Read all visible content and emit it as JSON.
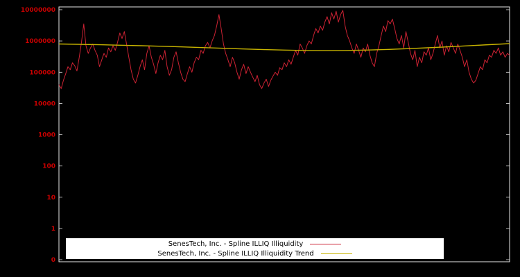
{
  "chart_data": {
    "type": "line",
    "title": "",
    "xlabel": "",
    "ylabel": "",
    "y_scale": "log",
    "grid": false,
    "legend_position": "bottom-center",
    "background_color": "#000000",
    "frame_color": "#e8e8e8",
    "tick_label_color": "#cc0000",
    "y_ticks": [
      {
        "label": "10000000",
        "value": 10000000
      },
      {
        "label": "1000000",
        "value": 1000000
      },
      {
        "label": "100000",
        "value": 100000
      },
      {
        "label": "10000",
        "value": 10000
      },
      {
        "label": "1000",
        "value": 1000
      },
      {
        "label": "100",
        "value": 100
      },
      {
        "label": "10",
        "value": 10
      },
      {
        "label": "1",
        "value": 1
      },
      {
        "label": "0",
        "value": null
      }
    ],
    "ylim_log10": [
      0,
      7
    ],
    "series": [
      {
        "name": "SenesTech, Inc. - Spline ILLIQ Illiquidity",
        "color": "#cc2233",
        "width": 1,
        "values": [
          40000,
          30000,
          55000,
          90000,
          150000,
          120000,
          200000,
          160000,
          110000,
          300000,
          900000,
          3500000,
          700000,
          400000,
          600000,
          800000,
          500000,
          350000,
          150000,
          250000,
          400000,
          300000,
          600000,
          450000,
          700000,
          500000,
          900000,
          1800000,
          1200000,
          2000000,
          800000,
          300000,
          120000,
          60000,
          45000,
          80000,
          150000,
          250000,
          120000,
          400000,
          700000,
          300000,
          180000,
          90000,
          200000,
          350000,
          250000,
          500000,
          150000,
          80000,
          120000,
          300000,
          450000,
          200000,
          100000,
          60000,
          50000,
          90000,
          150000,
          100000,
          200000,
          300000,
          250000,
          500000,
          400000,
          700000,
          900000,
          600000,
          1000000,
          1500000,
          3000000,
          7000000,
          2500000,
          800000,
          400000,
          250000,
          150000,
          300000,
          200000,
          100000,
          60000,
          120000,
          180000,
          90000,
          150000,
          100000,
          70000,
          50000,
          80000,
          40000,
          30000,
          45000,
          60000,
          35000,
          55000,
          75000,
          100000,
          80000,
          140000,
          120000,
          200000,
          150000,
          250000,
          180000,
          300000,
          500000,
          350000,
          800000,
          600000,
          400000,
          700000,
          1000000,
          800000,
          1500000,
          2500000,
          1800000,
          3000000,
          2200000,
          4000000,
          6000000,
          3500000,
          8000000,
          5000000,
          9000000,
          4000000,
          7000000,
          9500000,
          3000000,
          1500000,
          1000000,
          600000,
          400000,
          800000,
          500000,
          300000,
          600000,
          450000,
          800000,
          350000,
          200000,
          150000,
          400000,
          700000,
          1500000,
          3000000,
          2000000,
          4500000,
          3500000,
          5000000,
          2500000,
          1200000,
          800000,
          1500000,
          600000,
          2000000,
          900000,
          400000,
          250000,
          500000,
          150000,
          300000,
          200000,
          450000,
          350000,
          600000,
          250000,
          400000,
          800000,
          1500000,
          600000,
          1000000,
          350000,
          700000,
          450000,
          900000,
          600000,
          400000,
          800000,
          500000,
          300000,
          150000,
          250000,
          100000,
          60000,
          45000,
          55000,
          90000,
          150000,
          120000,
          250000,
          200000,
          350000,
          300000,
          500000,
          400000,
          600000,
          350000,
          450000,
          300000,
          400000,
          350000
        ]
      },
      {
        "name": "SenesTech, Inc. - Spline ILLIQ Illiquidity Trend",
        "color": "#c8b400",
        "width": 1.4,
        "values": [
          800000,
          780000,
          755000,
          730000,
          705000,
          675000,
          645000,
          615000,
          585000,
          555000,
          530000,
          510000,
          495000,
          490000,
          495000,
          510000,
          535000,
          565000,
          605000,
          650000,
          700000,
          760000,
          820000
        ]
      }
    ]
  },
  "legend": {
    "items": [
      {
        "label": "SenesTech, Inc. - Spline ILLIQ Illiquidity"
      },
      {
        "label": "SenesTech, Inc. - Spline ILLIQ Illiquidity Trend"
      }
    ]
  }
}
